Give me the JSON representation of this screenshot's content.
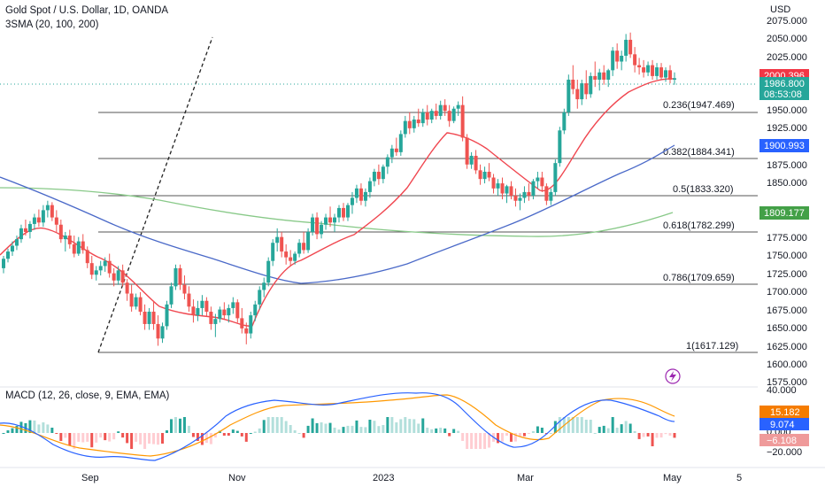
{
  "chart_data": {
    "type": "candlestick",
    "title": "Gold Spot / U.S. Dollar, 1D, OANDA",
    "indicator_label": "3SMA (20, 100, 200)",
    "currency": "USD",
    "ylim": [
      1560,
      2090
    ],
    "y_ticks": [
      "2075.000",
      "2050.000",
      "2025.000",
      "1950.000",
      "1925.000",
      "1875.000",
      "1850.000",
      "1775.000",
      "1750.000",
      "1725.000",
      "1700.000",
      "1675.000",
      "1650.000",
      "1625.000",
      "1600.000",
      "1575.000"
    ],
    "x_labels": [
      "Sep",
      "Nov",
      "2023",
      "Mar",
      "May",
      "5"
    ],
    "candles": [
      [
        1725,
        1742,
        1718,
        1738
      ],
      [
        1738,
        1752,
        1733,
        1748
      ],
      [
        1748,
        1762,
        1742,
        1756
      ],
      [
        1756,
        1770,
        1750,
        1765
      ],
      [
        1765,
        1785,
        1760,
        1780
      ],
      [
        1780,
        1792,
        1770,
        1775
      ],
      [
        1775,
        1790,
        1766,
        1786
      ],
      [
        1786,
        1800,
        1778,
        1795
      ],
      [
        1795,
        1806,
        1782,
        1788
      ],
      [
        1788,
        1812,
        1782,
        1805
      ],
      [
        1805,
        1818,
        1795,
        1812
      ],
      [
        1812,
        1816,
        1790,
        1795
      ],
      [
        1795,
        1805,
        1775,
        1785
      ],
      [
        1785,
        1792,
        1760,
        1765
      ],
      [
        1765,
        1775,
        1748,
        1770
      ],
      [
        1770,
        1778,
        1752,
        1758
      ],
      [
        1758,
        1770,
        1740,
        1745
      ],
      [
        1745,
        1768,
        1742,
        1762
      ],
      [
        1762,
        1772,
        1745,
        1750
      ],
      [
        1750,
        1755,
        1725,
        1732
      ],
      [
        1732,
        1742,
        1710,
        1716
      ],
      [
        1716,
        1728,
        1708,
        1722
      ],
      [
        1722,
        1735,
        1715,
        1728
      ],
      [
        1728,
        1740,
        1720,
        1735
      ],
      [
        1735,
        1745,
        1712,
        1718
      ],
      [
        1718,
        1725,
        1700,
        1708
      ],
      [
        1708,
        1728,
        1702,
        1722
      ],
      [
        1722,
        1730,
        1700,
        1705
      ],
      [
        1705,
        1710,
        1680,
        1690
      ],
      [
        1690,
        1702,
        1665,
        1672
      ],
      [
        1672,
        1690,
        1668,
        1685
      ],
      [
        1685,
        1692,
        1660,
        1665
      ],
      [
        1665,
        1675,
        1640,
        1648
      ],
      [
        1648,
        1670,
        1640,
        1665
      ],
      [
        1665,
        1680,
        1640,
        1648
      ],
      [
        1648,
        1660,
        1618,
        1628
      ],
      [
        1628,
        1650,
        1622,
        1645
      ],
      [
        1645,
        1680,
        1640,
        1675
      ],
      [
        1675,
        1705,
        1670,
        1700
      ],
      [
        1700,
        1730,
        1695,
        1725
      ],
      [
        1725,
        1730,
        1695,
        1702
      ],
      [
        1702,
        1715,
        1682,
        1690
      ],
      [
        1690,
        1700,
        1665,
        1672
      ],
      [
        1672,
        1682,
        1650,
        1660
      ],
      [
        1660,
        1680,
        1652,
        1670
      ],
      [
        1670,
        1688,
        1660,
        1680
      ],
      [
        1680,
        1685,
        1658,
        1665
      ],
      [
        1665,
        1672,
        1640,
        1648
      ],
      [
        1648,
        1662,
        1630,
        1655
      ],
      [
        1655,
        1672,
        1650,
        1668
      ],
      [
        1668,
        1678,
        1655,
        1660
      ],
      [
        1660,
        1675,
        1650,
        1670
      ],
      [
        1670,
        1685,
        1662,
        1678
      ],
      [
        1678,
        1682,
        1650,
        1656
      ],
      [
        1656,
        1670,
        1635,
        1642
      ],
      [
        1642,
        1650,
        1620,
        1635
      ],
      [
        1635,
        1665,
        1628,
        1660
      ],
      [
        1660,
        1680,
        1652,
        1675
      ],
      [
        1675,
        1700,
        1668,
        1695
      ],
      [
        1695,
        1712,
        1685,
        1705
      ],
      [
        1705,
        1740,
        1700,
        1735
      ],
      [
        1735,
        1765,
        1728,
        1760
      ],
      [
        1760,
        1780,
        1748,
        1768
      ],
      [
        1768,
        1775,
        1740,
        1748
      ],
      [
        1748,
        1758,
        1730,
        1740
      ],
      [
        1740,
        1750,
        1728,
        1735
      ],
      [
        1735,
        1748,
        1730,
        1745
      ],
      [
        1745,
        1765,
        1740,
        1760
      ],
      [
        1760,
        1775,
        1745,
        1750
      ],
      [
        1750,
        1780,
        1746,
        1775
      ],
      [
        1775,
        1800,
        1770,
        1795
      ],
      [
        1795,
        1802,
        1765,
        1772
      ],
      [
        1772,
        1790,
        1766,
        1785
      ],
      [
        1785,
        1800,
        1778,
        1795
      ],
      [
        1795,
        1810,
        1782,
        1788
      ],
      [
        1788,
        1800,
        1775,
        1795
      ],
      [
        1795,
        1812,
        1788,
        1808
      ],
      [
        1808,
        1815,
        1790,
        1795
      ],
      [
        1795,
        1815,
        1790,
        1812
      ],
      [
        1812,
        1830,
        1800,
        1822
      ],
      [
        1822,
        1840,
        1815,
        1835
      ],
      [
        1835,
        1842,
        1812,
        1818
      ],
      [
        1818,
        1835,
        1810,
        1830
      ],
      [
        1830,
        1850,
        1822,
        1845
      ],
      [
        1845,
        1862,
        1838,
        1858
      ],
      [
        1858,
        1868,
        1840,
        1848
      ],
      [
        1848,
        1868,
        1842,
        1865
      ],
      [
        1865,
        1882,
        1855,
        1878
      ],
      [
        1878,
        1895,
        1870,
        1890
      ],
      [
        1890,
        1905,
        1880,
        1885
      ],
      [
        1885,
        1915,
        1880,
        1910
      ],
      [
        1910,
        1935,
        1905,
        1928
      ],
      [
        1928,
        1940,
        1910,
        1918
      ],
      [
        1918,
        1935,
        1912,
        1930
      ],
      [
        1930,
        1945,
        1920,
        1925
      ],
      [
        1925,
        1945,
        1920,
        1940
      ],
      [
        1940,
        1950,
        1922,
        1930
      ],
      [
        1930,
        1945,
        1925,
        1942
      ],
      [
        1942,
        1952,
        1930,
        1935
      ],
      [
        1935,
        1956,
        1930,
        1950
      ],
      [
        1950,
        1958,
        1935,
        1942
      ],
      [
        1942,
        1950,
        1920,
        1928
      ],
      [
        1928,
        1948,
        1925,
        1945
      ],
      [
        1945,
        1955,
        1935,
        1950
      ],
      [
        1950,
        1962,
        1900,
        1905
      ],
      [
        1905,
        1910,
        1862,
        1868
      ],
      [
        1868,
        1885,
        1862,
        1880
      ],
      [
        1880,
        1888,
        1855,
        1860
      ],
      [
        1860,
        1868,
        1840,
        1848
      ],
      [
        1848,
        1865,
        1842,
        1858
      ],
      [
        1858,
        1870,
        1845,
        1850
      ],
      [
        1850,
        1855,
        1828,
        1835
      ],
      [
        1835,
        1848,
        1825,
        1842
      ],
      [
        1842,
        1850,
        1820,
        1828
      ],
      [
        1828,
        1840,
        1815,
        1838
      ],
      [
        1838,
        1845,
        1820,
        1825
      ],
      [
        1825,
        1835,
        1810,
        1818
      ],
      [
        1818,
        1828,
        1805,
        1822
      ],
      [
        1822,
        1838,
        1815,
        1830
      ],
      [
        1830,
        1842,
        1818,
        1825
      ],
      [
        1825,
        1848,
        1820,
        1845
      ],
      [
        1845,
        1858,
        1835,
        1850
      ],
      [
        1850,
        1858,
        1830,
        1838
      ],
      [
        1838,
        1842,
        1812,
        1818
      ],
      [
        1818,
        1835,
        1812,
        1830
      ],
      [
        1830,
        1875,
        1825,
        1870
      ],
      [
        1870,
        1920,
        1865,
        1915
      ],
      [
        1915,
        1945,
        1910,
        1940
      ],
      [
        1940,
        1992,
        1935,
        1985
      ],
      [
        1985,
        2005,
        1965,
        1972
      ],
      [
        1972,
        1985,
        1945,
        1958
      ],
      [
        1958,
        1985,
        1950,
        1980
      ],
      [
        1980,
        1998,
        1958,
        1965
      ],
      [
        1965,
        1995,
        1960,
        1990
      ],
      [
        1990,
        2010,
        1975,
        1985
      ],
      [
        1985,
        2000,
        1970,
        1995
      ],
      [
        1995,
        2005,
        1978,
        1985
      ],
      [
        1985,
        2000,
        1975,
        1998
      ],
      [
        1998,
        2030,
        1990,
        2025
      ],
      [
        2025,
        2035,
        2000,
        2010
      ],
      [
        2010,
        2025,
        1998,
        2018
      ],
      [
        2018,
        2048,
        2010,
        2040
      ],
      [
        2040,
        2050,
        2015,
        2020
      ],
      [
        2020,
        2030,
        1995,
        2005
      ],
      [
        2005,
        2015,
        1992,
        2002
      ],
      [
        2002,
        2012,
        1988,
        1995
      ],
      [
        1995,
        2010,
        1990,
        2005
      ],
      [
        2005,
        2012,
        1985,
        1990
      ],
      [
        1990,
        2008,
        1985,
        2002
      ],
      [
        2002,
        2008,
        1985,
        1988
      ],
      [
        1988,
        2002,
        1982,
        1998
      ],
      [
        1998,
        2005,
        1980,
        1985
      ],
      [
        1985,
        1995,
        1978,
        1987
      ]
    ],
    "series": [
      {
        "name": "SMA 20",
        "color": "#f0464f"
      },
      {
        "name": "SMA 100",
        "color": "#4a69c8"
      },
      {
        "name": "SMA 200",
        "color": "#88c988"
      }
    ],
    "fib_levels": [
      {
        "ratio": "0.236",
        "value": 1947.469,
        "label": "0.236(1947.469)"
      },
      {
        "ratio": "0.382",
        "value": 1884.341,
        "label": "0.382(1884.341)"
      },
      {
        "ratio": "0.5",
        "value": 1833.32,
        "label": "0.5(1833.320)"
      },
      {
        "ratio": "0.618",
        "value": 1782.299,
        "label": "0.618(1782.299)"
      },
      {
        "ratio": "0.786",
        "value": 1709.659,
        "label": "0.786(1709.659)"
      },
      {
        "ratio": "1",
        "value": 1617.129,
        "label": "1(1617.129)"
      }
    ],
    "price_tags": [
      {
        "value": 2000.396,
        "label": "2000.396",
        "color": "#f23645"
      },
      {
        "value": 1986.8,
        "label": "1986.800",
        "sub": "08:53:08",
        "color": "#26a69a"
      },
      {
        "value": 1900.993,
        "label": "1900.993",
        "color": "#2962ff"
      },
      {
        "value": 1809.177,
        "label": "1809.177",
        "color": "#43a047"
      }
    ],
    "macd": {
      "label": "MACD (12, 26, close, 9, EMA, EMA)",
      "ylim": [
        -30,
        45
      ],
      "y_ticks": [
        "40.000",
        "0.000",
        "−20.000"
      ],
      "tags": [
        {
          "label": "15.182",
          "color": "#f57c00",
          "value": 15.182
        },
        {
          "label": "9.074",
          "color": "#2962ff",
          "value": 9.074
        },
        {
          "label": "−6.108",
          "color": "#ef9a9a",
          "value": -6.108
        }
      ]
    },
    "up_color": "#26a69a",
    "down_color": "#ef5350"
  }
}
